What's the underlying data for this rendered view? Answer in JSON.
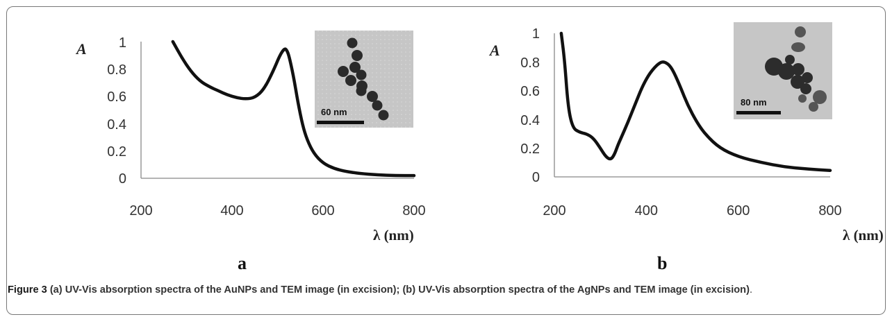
{
  "chart_data": [
    {
      "type": "line",
      "panel_label": "a",
      "ylabel": "A",
      "xlabel": "λ (nm)",
      "xlim": [
        200,
        800
      ],
      "ylim": [
        0,
        1
      ],
      "xticks": [
        "200",
        "400",
        "600",
        "800"
      ],
      "yticks": [
        "0",
        "0.2",
        "0.4",
        "0.6",
        "0.8",
        "1"
      ],
      "grid": false,
      "inset": {
        "kind": "TEM image",
        "scale_bar": "60 nm"
      },
      "series": [
        {
          "x": [
            270,
            290,
            310,
            330,
            350,
            370,
            390,
            410,
            430,
            450,
            470,
            490,
            505,
            515,
            520,
            525,
            535,
            545,
            555,
            565,
            580,
            600,
            625,
            650,
            680,
            720,
            760,
            800
          ],
          "y": [
            1.0,
            0.88,
            0.78,
            0.71,
            0.67,
            0.64,
            0.61,
            0.59,
            0.58,
            0.59,
            0.65,
            0.78,
            0.9,
            0.95,
            0.94,
            0.9,
            0.75,
            0.55,
            0.39,
            0.28,
            0.18,
            0.11,
            0.07,
            0.05,
            0.035,
            0.025,
            0.02,
            0.02
          ]
        }
      ]
    },
    {
      "type": "line",
      "panel_label": "b",
      "ylabel": "A",
      "xlabel": "λ (nm)",
      "xlim": [
        200,
        800
      ],
      "ylim": [
        0,
        1
      ],
      "xticks": [
        "200",
        "400",
        "600",
        "800"
      ],
      "yticks": [
        "0",
        "0.2",
        "0.4",
        "0.6",
        "0.8",
        "1"
      ],
      "grid": false,
      "inset": {
        "kind": "TEM image",
        "scale_bar": "80 nm"
      },
      "series": [
        {
          "x": [
            215,
            222,
            230,
            240,
            255,
            270,
            285,
            300,
            312,
            322,
            330,
            338,
            345,
            360,
            375,
            390,
            405,
            420,
            432,
            440,
            450,
            460,
            475,
            490,
            510,
            530,
            560,
            600,
            650,
            700,
            750,
            800
          ],
          "y": [
            1.0,
            0.82,
            0.48,
            0.34,
            0.31,
            0.3,
            0.27,
            0.2,
            0.14,
            0.12,
            0.15,
            0.22,
            0.27,
            0.38,
            0.5,
            0.62,
            0.71,
            0.77,
            0.8,
            0.8,
            0.78,
            0.73,
            0.62,
            0.5,
            0.38,
            0.29,
            0.2,
            0.14,
            0.1,
            0.07,
            0.055,
            0.045
          ]
        }
      ]
    }
  ],
  "caption": {
    "figure_label": "Figure 3",
    "text": " (a) UV-Vis absorption spectra of the AuNPs and TEM image (in excision); (b) UV-Vis absorption spectra of the AgNPs and TEM image (in excision)",
    "end": "."
  },
  "colors": {
    "curve": "#111111",
    "axis": "#888888",
    "frame": "#777777",
    "inset_bg": "#c8c8c8"
  }
}
